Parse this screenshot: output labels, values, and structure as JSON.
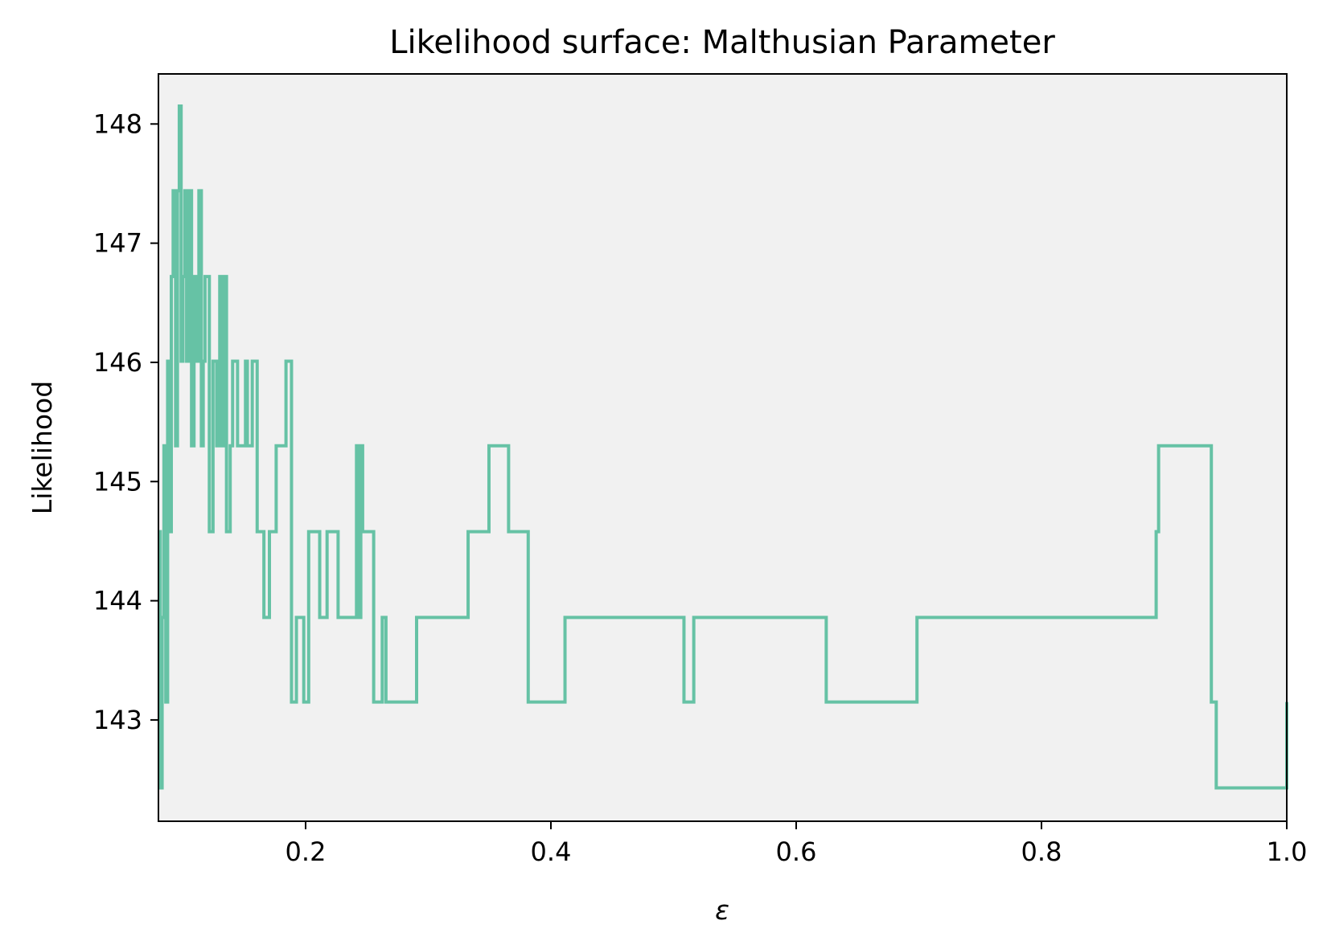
{
  "chart_data": {
    "type": "line",
    "title": "Likelihood surface: Malthusian Parameter",
    "xlabel": "ε",
    "ylabel": "Likelihood",
    "xlim": [
      0.08,
      1.0
    ],
    "ylim": [
      142.15,
      148.42
    ],
    "xticks": [
      0.2,
      0.4,
      0.6,
      0.8,
      1.0
    ],
    "xtick_labels": [
      "0.2",
      "0.4",
      "0.6",
      "0.8",
      "1.0"
    ],
    "yticks": [
      143,
      144,
      145,
      146,
      147,
      148
    ],
    "ytick_labels": [
      "143",
      "144",
      "145",
      "146",
      "147",
      "148"
    ],
    "grid": false,
    "legend": "none",
    "plot_background": "#f1f1f1",
    "series": [
      {
        "color": "#66c2a5",
        "step": "post",
        "x": [
          0.08,
          0.0815,
          0.083,
          0.0845,
          0.086,
          0.0875,
          0.089,
          0.0905,
          0.092,
          0.094,
          0.0955,
          0.097,
          0.0985,
          0.1,
          0.1015,
          0.103,
          0.105,
          0.107,
          0.109,
          0.111,
          0.113,
          0.115,
          0.1165,
          0.118,
          0.1215,
          0.1245,
          0.1275,
          0.13,
          0.1325,
          0.134,
          0.1355,
          0.1385,
          0.1405,
          0.1425,
          0.1445,
          0.151,
          0.1525,
          0.1565,
          0.1605,
          0.166,
          0.1705,
          0.176,
          0.184,
          0.1885,
          0.1925,
          0.1985,
          0.2025,
          0.2115,
          0.2175,
          0.2265,
          0.2415,
          0.2435,
          0.245,
          0.2465,
          0.2555,
          0.2625,
          0.2655,
          0.2905,
          0.3325,
          0.3495,
          0.3655,
          0.3815,
          0.4115,
          0.5085,
          0.5165,
          0.6245,
          0.6985,
          0.8935,
          0.8955,
          0.9385,
          0.9425,
          1.0
        ],
        "y": [
          144.58,
          142.43,
          143.86,
          145.3,
          143.15,
          146.01,
          144.58,
          146.72,
          147.44,
          145.3,
          147.44,
          148.15,
          146.01,
          146.72,
          147.44,
          146.01,
          147.44,
          145.3,
          146.72,
          146.01,
          147.44,
          145.3,
          146.01,
          146.72,
          144.58,
          146.01,
          145.3,
          146.72,
          145.3,
          146.72,
          144.58,
          145.3,
          146.01,
          146.01,
          145.3,
          146.01,
          145.3,
          146.01,
          144.58,
          143.86,
          144.58,
          145.3,
          146.01,
          143.15,
          143.86,
          143.15,
          144.58,
          143.86,
          144.58,
          143.86,
          145.3,
          143.86,
          145.3,
          144.58,
          143.15,
          143.86,
          143.15,
          143.86,
          144.58,
          145.3,
          144.58,
          143.15,
          143.86,
          143.15,
          143.86,
          143.15,
          143.86,
          144.58,
          145.3,
          143.15,
          142.43,
          143.15
        ]
      }
    ]
  }
}
